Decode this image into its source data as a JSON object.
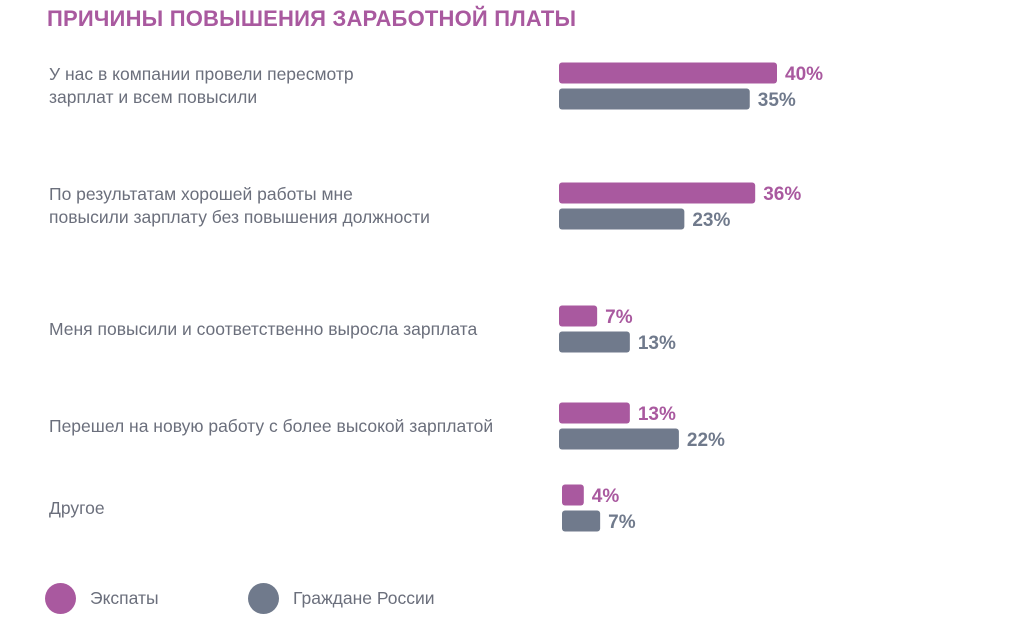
{
  "colors": {
    "expats": "#a9599f",
    "russians": "#707a8c",
    "title": "#a9599f",
    "text": "#6b6f7c"
  },
  "chart_data": {
    "type": "bar",
    "orientation": "horizontal",
    "title": "ПРИЧИНЫ ПОВЫШЕНИЯ ЗАРАБОТНОЙ ПЛАТЫ",
    "categories": [
      "У нас в компании провели пересмотр\nзарплат и всем повысили",
      "По результатам хорошей работы мне\nповысили зарплату без повышения должности",
      "Меня повысили и соответственно выросла зарплата",
      "Перешел на новую работу с более высокой зарплатой",
      "Другое"
    ],
    "series": [
      {
        "name": "Экспаты",
        "values": [
          40,
          36,
          7,
          13,
          4
        ],
        "labels": [
          "40%",
          "36%",
          "7%",
          "13%",
          "4%"
        ]
      },
      {
        "name": "Граждане России",
        "values": [
          35,
          23,
          13,
          22,
          7
        ],
        "labels": [
          "35%",
          "23%",
          "13%",
          "22%",
          "7%"
        ]
      }
    ],
    "value_suffix": "%",
    "legend": "bottom-left",
    "grid": false
  }
}
